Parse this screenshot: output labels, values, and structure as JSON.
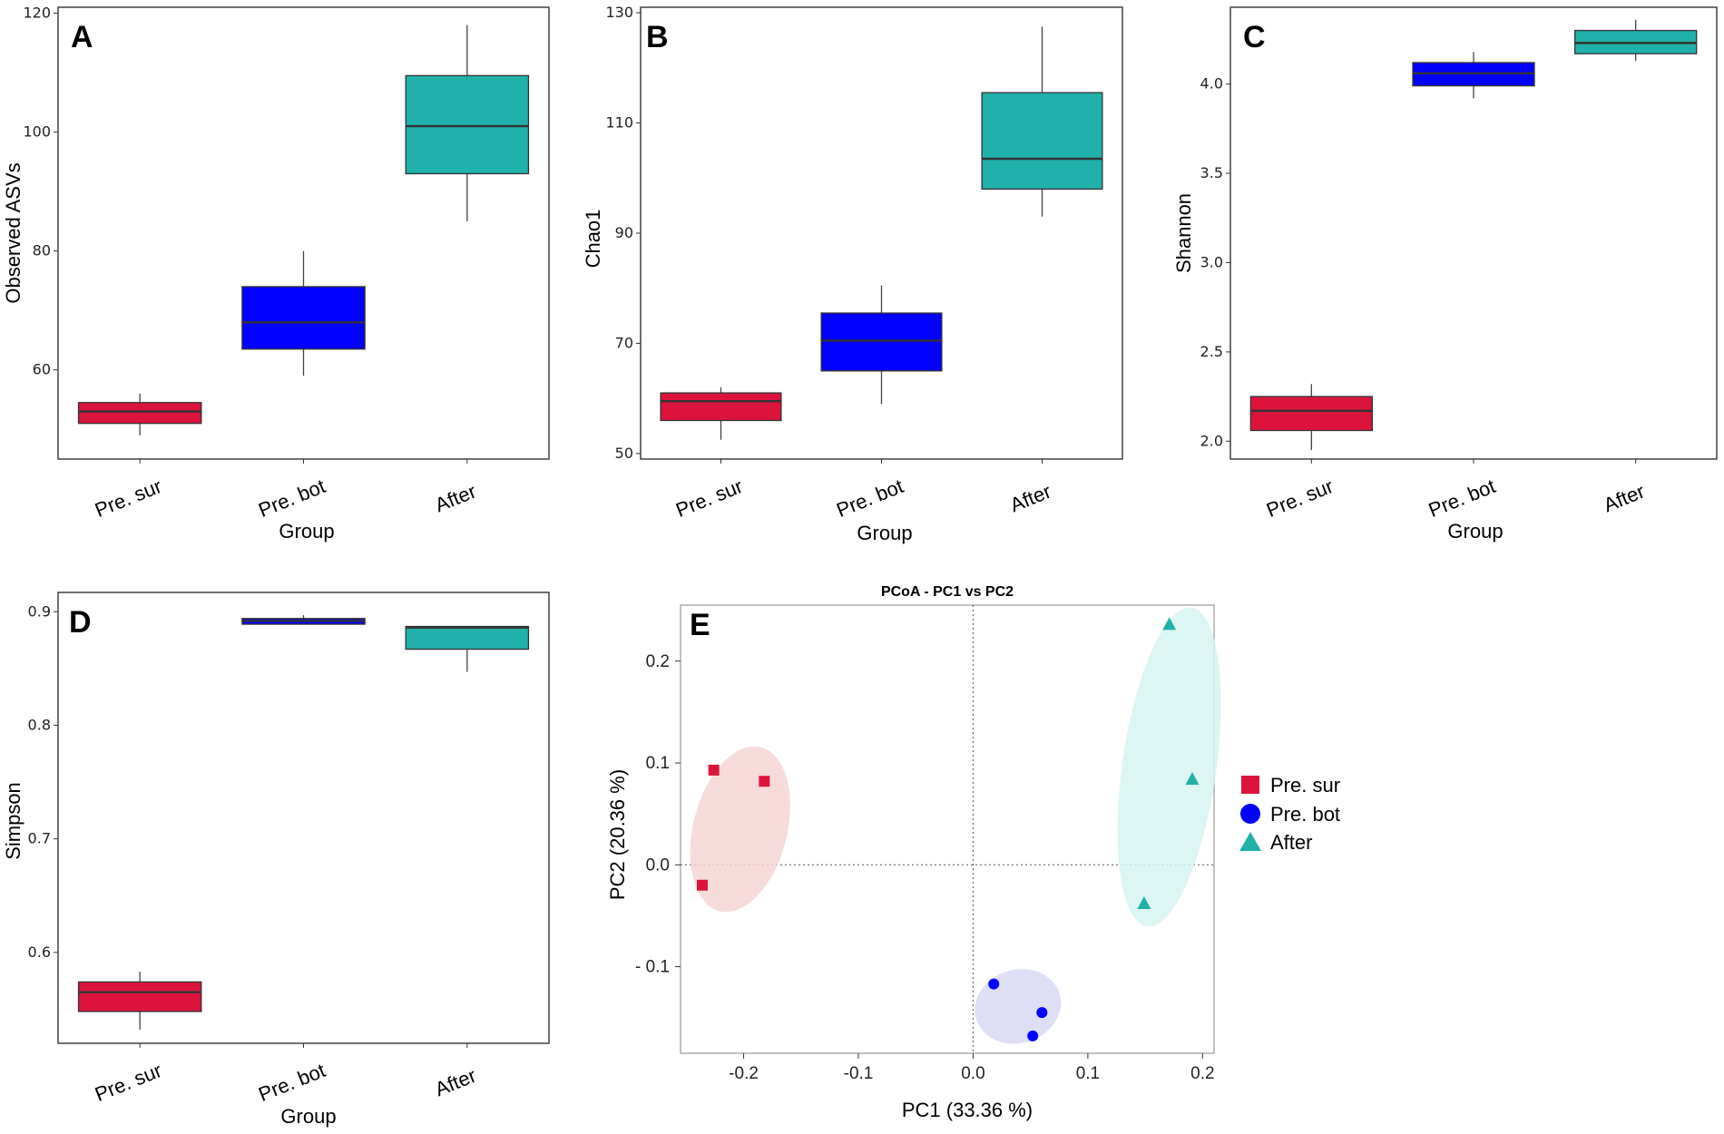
{
  "chart_data": [
    {
      "panel": "A",
      "type": "box",
      "xlabel": "Group",
      "ylabel": "Observed ASVs",
      "ylim": [
        45,
        121
      ],
      "yticks": [
        60,
        80,
        100,
        120
      ],
      "categories": [
        "Pre. sur",
        "Pre. bot",
        "After"
      ],
      "colors": [
        "#DC143C",
        "#0000FF",
        "#20B2AA"
      ],
      "boxes": [
        {
          "min": 49,
          "q1": 51,
          "median": 53,
          "q3": 54.5,
          "max": 56
        },
        {
          "min": 59,
          "q1": 63.5,
          "median": 68,
          "q3": 74,
          "max": 80
        },
        {
          "min": 85,
          "q1": 93,
          "median": 101,
          "q3": 109.5,
          "max": 118
        }
      ]
    },
    {
      "panel": "B",
      "type": "box",
      "xlabel": "Group",
      "ylabel": "Chao1",
      "ylim": [
        49,
        131
      ],
      "yticks": [
        50,
        70,
        90,
        110,
        130
      ],
      "categories": [
        "Pre. sur",
        "Pre. bot",
        "After"
      ],
      "colors": [
        "#DC143C",
        "#0000FF",
        "#20B2AA"
      ],
      "boxes": [
        {
          "min": 52.5,
          "q1": 56,
          "median": 59.5,
          "q3": 61,
          "max": 62
        },
        {
          "min": 59,
          "q1": 65,
          "median": 70.5,
          "q3": 75.5,
          "max": 80.5
        },
        {
          "min": 93,
          "q1": 98,
          "median": 103.5,
          "q3": 115.5,
          "max": 127.5
        }
      ]
    },
    {
      "panel": "C",
      "type": "box",
      "xlabel": "Group",
      "ylabel": "Shannon",
      "ylim": [
        1.9,
        4.43
      ],
      "yticks": [
        2.0,
        2.5,
        3.0,
        3.5,
        4.0
      ],
      "ytick_labels": [
        "2.0",
        "2.5",
        "3.0",
        "3.5",
        "4.0"
      ],
      "categories": [
        "Pre. sur",
        "Pre. bot",
        "After"
      ],
      "colors": [
        "#DC143C",
        "#0000FF",
        "#20B2AA"
      ],
      "boxes": [
        {
          "min": 1.95,
          "q1": 2.06,
          "median": 2.17,
          "q3": 2.25,
          "max": 2.32
        },
        {
          "min": 3.92,
          "q1": 3.99,
          "median": 4.06,
          "q3": 4.12,
          "max": 4.18
        },
        {
          "min": 4.13,
          "q1": 4.17,
          "median": 4.23,
          "q3": 4.3,
          "max": 4.36
        }
      ]
    },
    {
      "panel": "D",
      "type": "box",
      "xlabel": "Group",
      "ylabel": "Simpson",
      "ylim": [
        0.52,
        0.917
      ],
      "yticks": [
        0.6,
        0.7,
        0.8,
        0.9
      ],
      "ytick_labels": [
        "0.6",
        "0.7",
        "0.8",
        "0.9"
      ],
      "categories": [
        "Pre. sur",
        "Pre. bot",
        "After"
      ],
      "colors": [
        "#DC143C",
        "#0000FF",
        "#20B2AA"
      ],
      "boxes": [
        {
          "min": 0.532,
          "q1": 0.548,
          "median": 0.565,
          "q3": 0.574,
          "max": 0.583
        },
        {
          "min": 0.889,
          "q1": 0.889,
          "median": 0.892,
          "q3": 0.894,
          "max": 0.897
        },
        {
          "min": 0.847,
          "q1": 0.867,
          "median": 0.886,
          "q3": 0.887,
          "max": 0.887
        }
      ]
    },
    {
      "panel": "E",
      "type": "scatter",
      "title": "PCoA - PC1 vs PC2",
      "xlabel": "PC1 (33.36 %)",
      "ylabel": "PC2 (20.36 %)",
      "xlim": [
        -0.255,
        0.21
      ],
      "ylim": [
        -0.185,
        0.255
      ],
      "xticks": [
        -0.2,
        -0.1,
        0.0,
        0.1,
        0.2
      ],
      "xtick_labels": [
        "-0.2",
        "-0.1",
        "0.0",
        "0.1",
        "0.2"
      ],
      "yticks": [
        -0.1,
        0.0,
        0.1,
        0.2
      ],
      "ytick_labels": [
        "- 0.1",
        "0.0",
        "0.1",
        "0.2"
      ],
      "series": [
        {
          "name": "Pre. sur",
          "marker": "square",
          "color": "#DC143C",
          "fill": "#F6D5D5",
          "x": [
            -0.226,
            -0.182,
            -0.236
          ],
          "y": [
            0.093,
            0.082,
            -0.02
          ],
          "ellipse": {
            "cx": -0.203,
            "cy": 0.035,
            "rx": 0.041,
            "ry": 0.083,
            "angle_deg": 14
          }
        },
        {
          "name": "Pre. bot",
          "marker": "circle",
          "color": "#0000FF",
          "fill": "#D8D8F6",
          "x": [
            0.018,
            0.06,
            0.052
          ],
          "y": [
            -0.117,
            -0.145,
            -0.168
          ],
          "ellipse": {
            "cx": 0.039,
            "cy": -0.139,
            "rx": 0.038,
            "ry": 0.036,
            "angle_deg": -17
          }
        },
        {
          "name": "After",
          "marker": "triangle",
          "color": "#20B2AA",
          "fill": "#D5F4F1",
          "x": [
            0.171,
            0.191,
            0.149
          ],
          "y": [
            0.236,
            0.084,
            -0.038
          ],
          "ellipse": {
            "cx": 0.171,
            "cy": 0.096,
            "rx": 0.041,
            "ry": 0.158,
            "angle_deg": 8
          }
        }
      ]
    }
  ]
}
